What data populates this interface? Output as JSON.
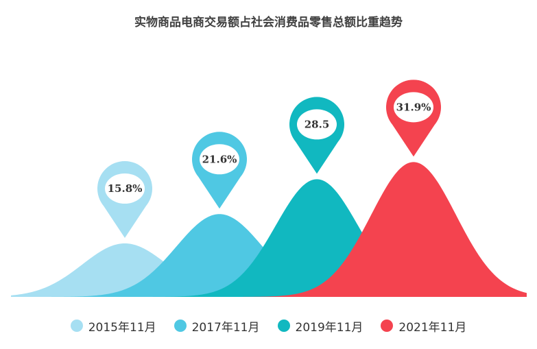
{
  "chart_data": {
    "type": "area",
    "title": "实物商品电商交易额占社会消费品零售总额比重趋势",
    "categories": [
      "2015年11月",
      "2017年11月",
      "2019年11月",
      "2021年11月"
    ],
    "values": [
      15.8,
      21.6,
      28.5,
      31.9
    ],
    "value_labels": [
      "15.8%",
      "21.6%",
      "28.5",
      "31.9%"
    ],
    "colors": [
      "#a6dff2",
      "#4fc8e3",
      "#11b8c0",
      "#f4434f"
    ],
    "legend_position": "bottom",
    "grid": false
  }
}
